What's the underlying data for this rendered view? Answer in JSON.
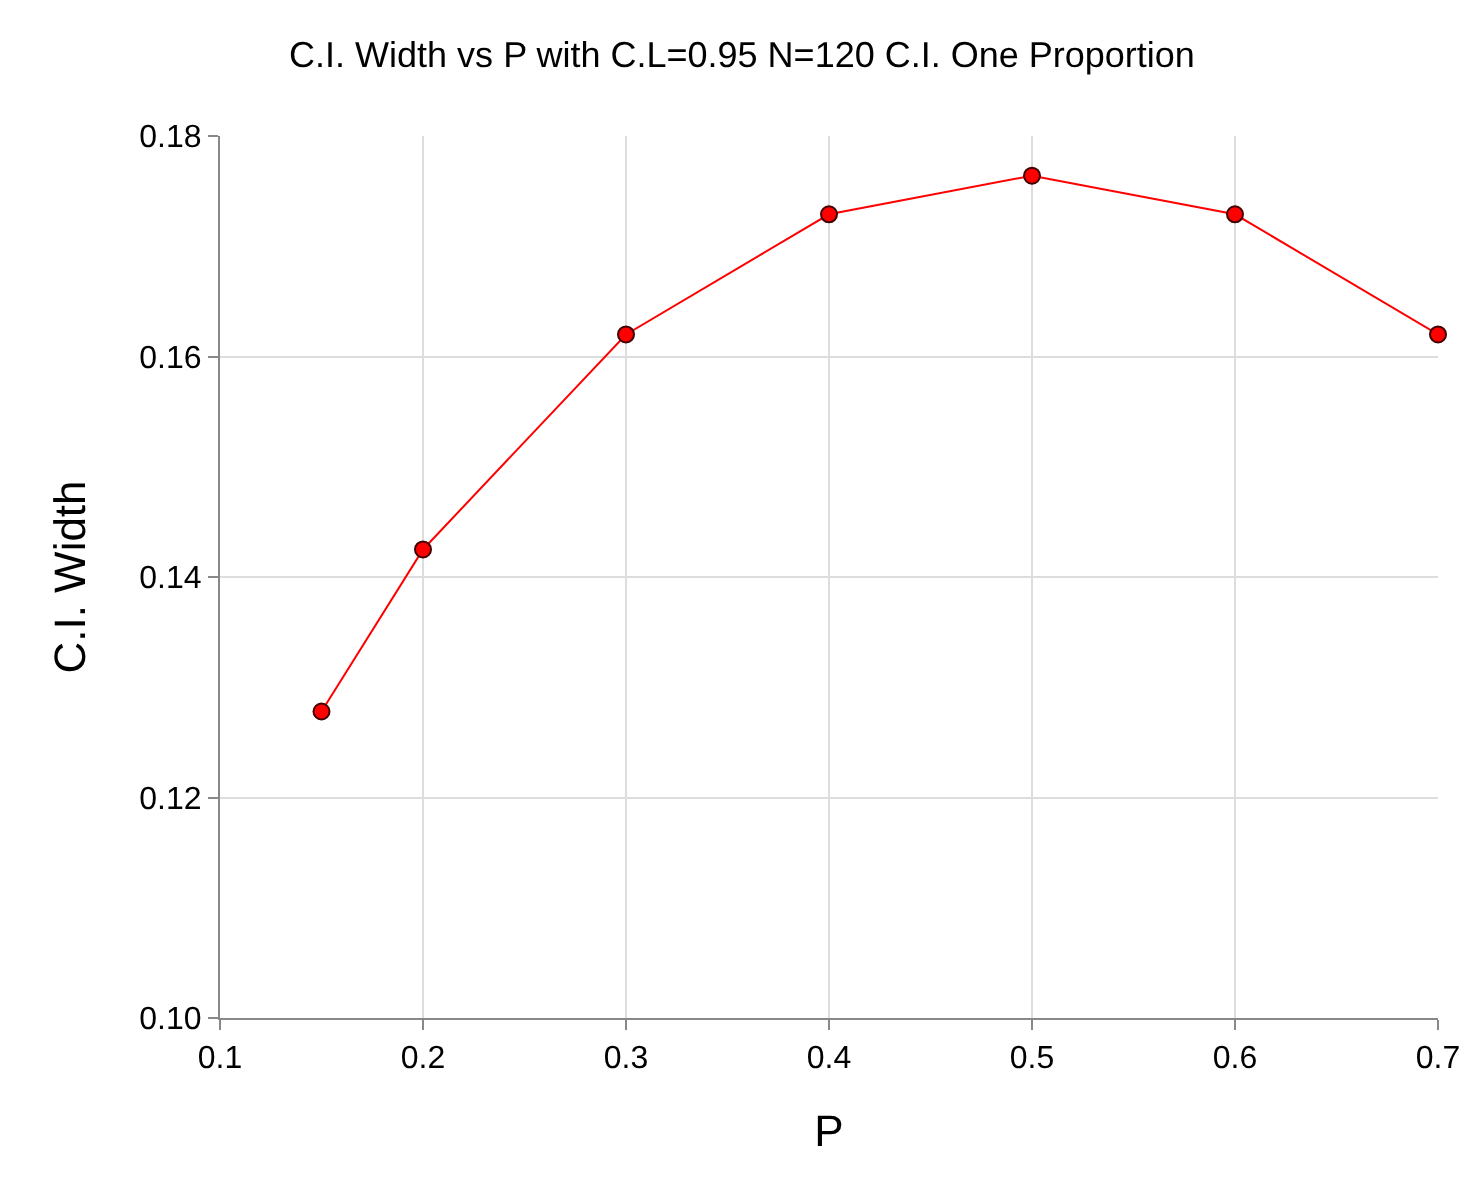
{
  "chart_data": {
    "type": "line",
    "title": "C.I. Width vs P with C.L=0.95 N=120 C.I. One Proportion",
    "xlabel": "P",
    "ylabel": "C.I. Width",
    "x": [
      0.15,
      0.2,
      0.3,
      0.4,
      0.5,
      0.6,
      0.7
    ],
    "series": [
      {
        "color": "#ff0000",
        "values": [
          0.1278,
          0.1425,
          0.162,
          0.1729,
          0.1764,
          0.1729,
          0.162
        ]
      }
    ],
    "xlim": [
      0.1,
      0.7
    ],
    "xticks": [
      0.1,
      0.2,
      0.3,
      0.4,
      0.5,
      0.6,
      0.7
    ],
    "ylim": [
      0.1,
      0.18
    ],
    "yticks": [
      {
        "value": 0.1,
        "label": "0.10"
      },
      {
        "value": 0.12,
        "label": "0.12"
      },
      {
        "value": 0.14,
        "label": "0.14"
      },
      {
        "value": 0.16,
        "label": "0.16"
      },
      {
        "value": 0.18,
        "label": "0.18"
      }
    ],
    "grid": true,
    "legend": false,
    "marker": "circle",
    "line_style": "solid"
  }
}
